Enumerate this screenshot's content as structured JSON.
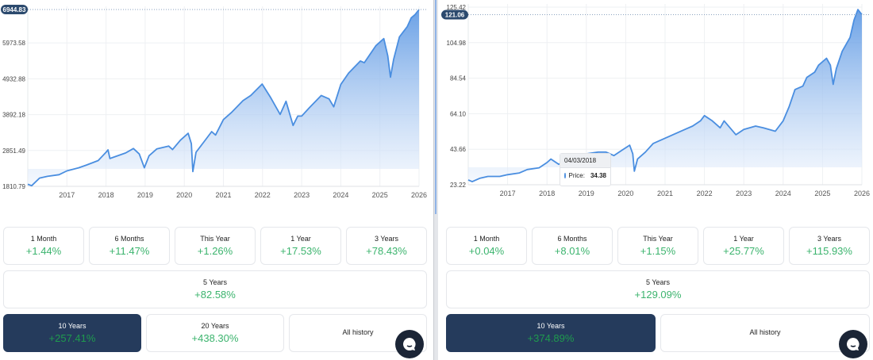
{
  "colors": {
    "line": "#4a8ee0",
    "fill_top": "#5b97e3",
    "fill_bottom": "#eef4fd",
    "positive": "#3cb46e",
    "active_bg": "#253b5c",
    "label_bg": "#2c4a6e"
  },
  "chart_data": [
    {
      "type": "area",
      "xlim": [
        2016.0,
        2026.0
      ],
      "ylim": [
        1810.79,
        6944.83
      ],
      "y_ticks": [
        "1810.79",
        "2851.49",
        "3892.18",
        "4932.88",
        "5973.58"
      ],
      "y_tick_values": [
        1810.79,
        2851.49,
        3892.18,
        4932.88,
        5973.58
      ],
      "x_ticks": [
        "2017",
        "2018",
        "2019",
        "2020",
        "2021",
        "2022",
        "2023",
        "2024",
        "2025",
        "2026"
      ],
      "current_value": "6944.83",
      "current_value_num": 6944.83,
      "grid": true,
      "series": [
        {
          "name": "Price",
          "x": [
            2016.0,
            2016.1,
            2016.3,
            2016.5,
            2016.8,
            2017.0,
            2017.3,
            2017.5,
            2017.8,
            2018.0,
            2018.05,
            2018.1,
            2018.3,
            2018.5,
            2018.7,
            2018.85,
            2018.98,
            2019.1,
            2019.3,
            2019.6,
            2019.7,
            2019.9,
            2020.1,
            2020.18,
            2020.22,
            2020.3,
            2020.5,
            2020.7,
            2020.8,
            2021.0,
            2021.2,
            2021.5,
            2021.7,
            2021.99,
            2022.2,
            2022.45,
            2022.6,
            2022.78,
            2022.9,
            2023.0,
            2023.2,
            2023.5,
            2023.7,
            2023.82,
            2024.0,
            2024.2,
            2024.5,
            2024.6,
            2024.9,
            2025.1,
            2025.2,
            2025.27,
            2025.35,
            2025.5,
            2025.7,
            2025.8,
            2025.9,
            2026.0
          ],
          "y": [
            1870,
            1830,
            2050,
            2100,
            2150,
            2260,
            2350,
            2430,
            2560,
            2800,
            2870,
            2620,
            2700,
            2780,
            2910,
            2750,
            2350,
            2700,
            2900,
            2980,
            2880,
            3150,
            3350,
            3050,
            2240,
            2800,
            3100,
            3400,
            3300,
            3750,
            3950,
            4300,
            4450,
            4780,
            4400,
            3900,
            4280,
            3580,
            3850,
            3850,
            4100,
            4450,
            4350,
            4120,
            4770,
            5100,
            5450,
            5400,
            5900,
            6100,
            5600,
            4980,
            5500,
            6150,
            6450,
            6700,
            6800,
            6944.83
          ]
        }
      ]
    },
    {
      "type": "area",
      "xlim": [
        2016.0,
        2026.0
      ],
      "ylim": [
        23.22,
        125.42
      ],
      "y_ticks": [
        "23.22",
        "43.66",
        "64.10",
        "84.54",
        "104.98",
        "125.42"
      ],
      "y_tick_values": [
        23.22,
        43.66,
        64.1,
        84.54,
        104.98,
        125.42
      ],
      "x_ticks": [
        "2017",
        "2018",
        "2019",
        "2020",
        "2021",
        "2022",
        "2023",
        "2024",
        "2025",
        "2026"
      ],
      "current_value": "121.06",
      "current_value_num": 121.06,
      "grid": true,
      "tooltip": {
        "date": "04/03/2018",
        "label": "Price:",
        "value": "34.38"
      },
      "series": [
        {
          "name": "Price",
          "x": [
            2016.0,
            2016.1,
            2016.3,
            2016.5,
            2016.8,
            2017.0,
            2017.3,
            2017.5,
            2017.8,
            2018.0,
            2018.1,
            2018.3,
            2018.5,
            2018.7,
            2019.0,
            2019.3,
            2019.5,
            2019.7,
            2019.9,
            2020.1,
            2020.18,
            2020.22,
            2020.3,
            2020.5,
            2020.7,
            2020.8,
            2021.0,
            2021.3,
            2021.5,
            2021.7,
            2021.9,
            2022.0,
            2022.2,
            2022.4,
            2022.5,
            2022.8,
            2023.0,
            2023.3,
            2023.5,
            2023.8,
            2024.0,
            2024.15,
            2024.3,
            2024.5,
            2024.6,
            2024.8,
            2024.9,
            2025.1,
            2025.2,
            2025.27,
            2025.35,
            2025.5,
            2025.7,
            2025.8,
            2025.9,
            2026.0
          ],
          "y": [
            26,
            25,
            27,
            28,
            28,
            29,
            30,
            32,
            33,
            36,
            38,
            35,
            38,
            40,
            41,
            42,
            42,
            40,
            43,
            46,
            41,
            31,
            38,
            42,
            47,
            48,
            50,
            53,
            55,
            57,
            60,
            63,
            60,
            56,
            60,
            52,
            55,
            57,
            56,
            54,
            60,
            68,
            78,
            80,
            85,
            88,
            92,
            96,
            92,
            81,
            90,
            100,
            108,
            118,
            124,
            121.06
          ]
        }
      ]
    }
  ],
  "panels": [
    {
      "cards_row1": [
        {
          "label": "1 Month",
          "value": "+1.44%"
        },
        {
          "label": "6 Months",
          "value": "+11.47%"
        },
        {
          "label": "This Year",
          "value": "+1.26%"
        },
        {
          "label": "1 Year",
          "value": "+17.53%"
        },
        {
          "label": "3 Years",
          "value": "+78.43%"
        }
      ],
      "five_years": {
        "label": "5 Years",
        "value": "+82.58%"
      },
      "ten_years": {
        "label": "10 Years",
        "value": "+257.41%"
      },
      "twenty_years": {
        "label": "20 Years",
        "value": "+438.30%"
      },
      "all_history": {
        "label": "All history"
      }
    },
    {
      "cards_row1": [
        {
          "label": "1 Month",
          "value": "+0.04%"
        },
        {
          "label": "6 Months",
          "value": "+8.01%"
        },
        {
          "label": "This Year",
          "value": "+1.15%"
        },
        {
          "label": "1 Year",
          "value": "+25.77%"
        },
        {
          "label": "3 Years",
          "value": "+115.93%"
        }
      ],
      "five_years": {
        "label": "5 Years",
        "value": "+129.09%"
      },
      "ten_years": {
        "label": "10 Years",
        "value": "+374.89%"
      },
      "all_history": {
        "label": "All history"
      }
    }
  ]
}
